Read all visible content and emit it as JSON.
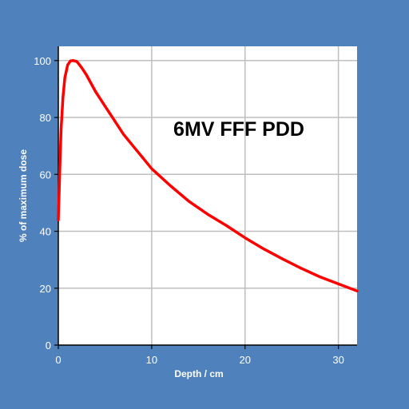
{
  "chart_data": {
    "type": "line",
    "title": "6MV FFF PDD",
    "xlabel": "Depth / cm",
    "ylabel": "% of maximum dose",
    "xlim": [
      0,
      32
    ],
    "ylim": [
      0,
      105
    ],
    "xticks": [
      0,
      10,
      20,
      30
    ],
    "yticks": [
      0,
      20,
      40,
      60,
      80,
      100
    ],
    "grid": true,
    "legend": "none",
    "series": [
      {
        "color": "#ff0000",
        "x": [
          0.0,
          0.1,
          0.2,
          0.3,
          0.5,
          0.7,
          1.0,
          1.3,
          1.6,
          2.0,
          2.5,
          3.0,
          4.0,
          5.0,
          6.0,
          7.0,
          8.0,
          9.0,
          10.0,
          12.0,
          14.0,
          16.0,
          18.0,
          20.0,
          22.0,
          24.0,
          26.0,
          28.0,
          30.0,
          32.0
        ],
        "y": [
          44,
          55,
          66,
          76,
          87,
          94,
          98.5,
          99.9,
          100,
          99.6,
          97.5,
          95,
          89,
          84,
          79,
          74,
          70,
          66,
          62,
          56,
          50.5,
          46,
          42,
          37.7,
          33.8,
          30.3,
          27,
          24,
          21.5,
          19
        ]
      }
    ]
  }
}
